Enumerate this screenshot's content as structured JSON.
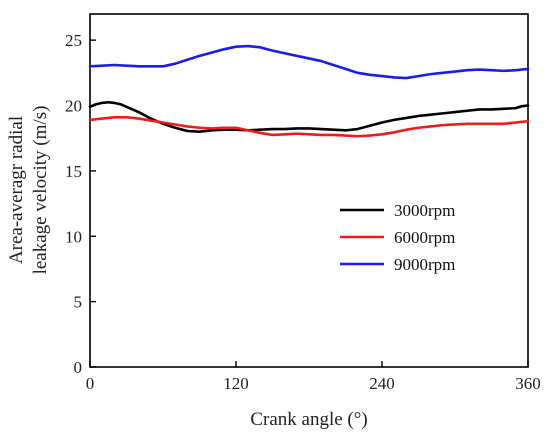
{
  "chart_data": {
    "type": "line",
    "xlabel": "Crank angle (°)",
    "ylabel_lines": [
      "Area-averagr radial",
      "leakage velocity (m/s)"
    ],
    "xlim": [
      0,
      360
    ],
    "ylim": [
      0,
      27
    ],
    "xticks": [
      0,
      120,
      240,
      360
    ],
    "yticks": [
      0,
      5,
      10,
      15,
      20,
      25
    ],
    "x_tick_labels": [
      "0",
      "120",
      "240",
      "360"
    ],
    "y_tick_labels": [
      "0",
      "5",
      "10",
      "15",
      "20",
      "25"
    ],
    "grid": false,
    "legend_position": "center-right",
    "series": [
      {
        "name": "3000rpm",
        "color": "#000000",
        "x": [
          0,
          5,
          10,
          15,
          20,
          25,
          30,
          40,
          50,
          60,
          70,
          80,
          90,
          100,
          110,
          120,
          130,
          140,
          150,
          160,
          170,
          180,
          190,
          200,
          210,
          220,
          230,
          240,
          250,
          260,
          270,
          280,
          290,
          300,
          310,
          320,
          330,
          340,
          350,
          355,
          360
        ],
        "y": [
          19.9,
          20.1,
          20.2,
          20.25,
          20.2,
          20.1,
          19.9,
          19.5,
          19.0,
          18.6,
          18.3,
          18.05,
          18.0,
          18.1,
          18.15,
          18.15,
          18.1,
          18.15,
          18.2,
          18.2,
          18.25,
          18.25,
          18.2,
          18.15,
          18.1,
          18.2,
          18.45,
          18.7,
          18.9,
          19.05,
          19.2,
          19.3,
          19.4,
          19.5,
          19.6,
          19.7,
          19.7,
          19.75,
          19.8,
          19.95,
          20.0
        ]
      },
      {
        "name": "6000rpm",
        "color": "#ee1c1c",
        "x": [
          0,
          10,
          20,
          30,
          40,
          50,
          60,
          70,
          80,
          90,
          100,
          110,
          120,
          130,
          140,
          150,
          160,
          170,
          180,
          190,
          200,
          210,
          220,
          230,
          240,
          250,
          260,
          270,
          280,
          290,
          300,
          310,
          320,
          330,
          340,
          350,
          360
        ],
        "y": [
          18.9,
          19.0,
          19.1,
          19.1,
          19.0,
          18.85,
          18.7,
          18.55,
          18.4,
          18.3,
          18.25,
          18.3,
          18.3,
          18.1,
          17.9,
          17.75,
          17.8,
          17.85,
          17.8,
          17.75,
          17.75,
          17.7,
          17.65,
          17.7,
          17.8,
          17.95,
          18.15,
          18.3,
          18.4,
          18.5,
          18.55,
          18.6,
          18.6,
          18.6,
          18.6,
          18.7,
          18.8
        ]
      },
      {
        "name": "9000rpm",
        "color": "#1c1cee",
        "x": [
          0,
          10,
          20,
          30,
          40,
          50,
          60,
          70,
          80,
          90,
          100,
          110,
          120,
          130,
          140,
          150,
          160,
          170,
          180,
          190,
          200,
          210,
          220,
          230,
          240,
          250,
          260,
          270,
          280,
          290,
          300,
          310,
          320,
          330,
          340,
          350,
          360
        ],
        "y": [
          23.0,
          23.05,
          23.1,
          23.05,
          23.0,
          23.0,
          23.0,
          23.2,
          23.5,
          23.8,
          24.05,
          24.3,
          24.5,
          24.55,
          24.45,
          24.2,
          24.0,
          23.8,
          23.6,
          23.4,
          23.1,
          22.8,
          22.5,
          22.35,
          22.25,
          22.15,
          22.1,
          22.25,
          22.4,
          22.5,
          22.6,
          22.7,
          22.75,
          22.7,
          22.65,
          22.7,
          22.8
        ]
      }
    ]
  }
}
